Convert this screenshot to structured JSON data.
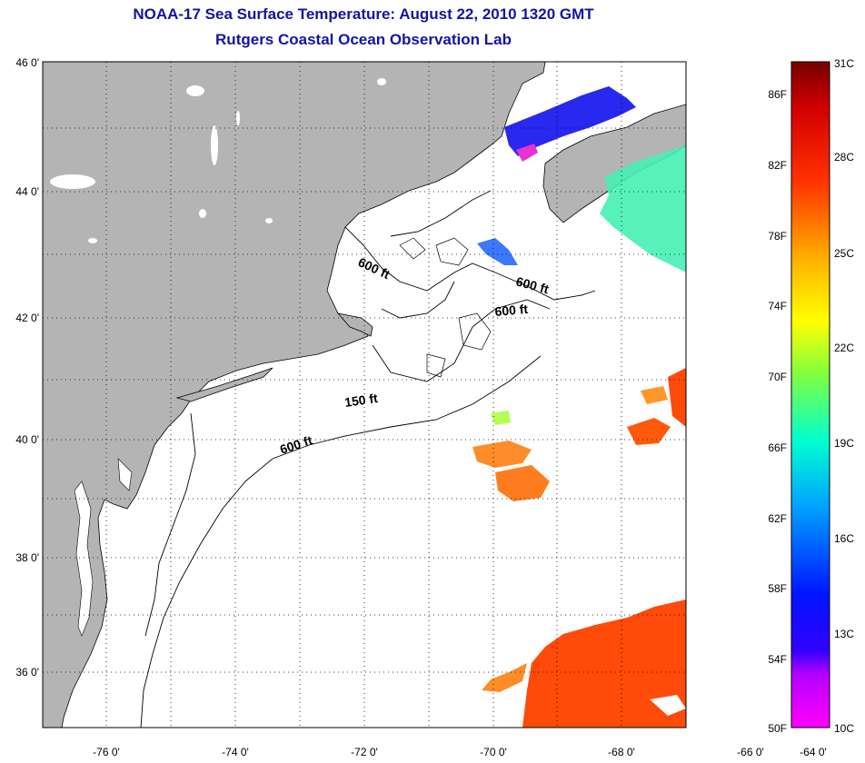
{
  "header": {
    "title": "NOAA-17 Sea Surface Temperature:  August 22, 2010 1320 GMT",
    "subtitle": "Rutgers Coastal Ocean Observation Lab"
  },
  "map": {
    "lon_labels": [
      "-76 0'",
      "-74 0'",
      "-72 0'",
      "-70 0'",
      "-68 0'",
      "-66 0'",
      "-64 0'"
    ],
    "lat_labels": [
      "46 0'",
      "44 0'",
      "42 0'",
      "40 0'",
      "38 0'",
      "36 0'"
    ],
    "contour_labels": [
      "600 ft",
      "600 ft",
      "600 ft",
      "150 ft",
      "600 ft"
    ],
    "colors": {
      "land": "#b4b4b4",
      "ocean": "#ffffff",
      "warm": "#ff4a0a",
      "cool": "#32c8ff"
    }
  },
  "colorbar": {
    "fahrenheit": [
      "86F",
      "82F",
      "78F",
      "74F",
      "70F",
      "66F",
      "62F",
      "58F",
      "54F",
      "50F"
    ],
    "celsius": [
      "31C",
      "28C",
      "25C",
      "22C",
      "19C",
      "16C",
      "13C",
      "10C"
    ]
  }
}
